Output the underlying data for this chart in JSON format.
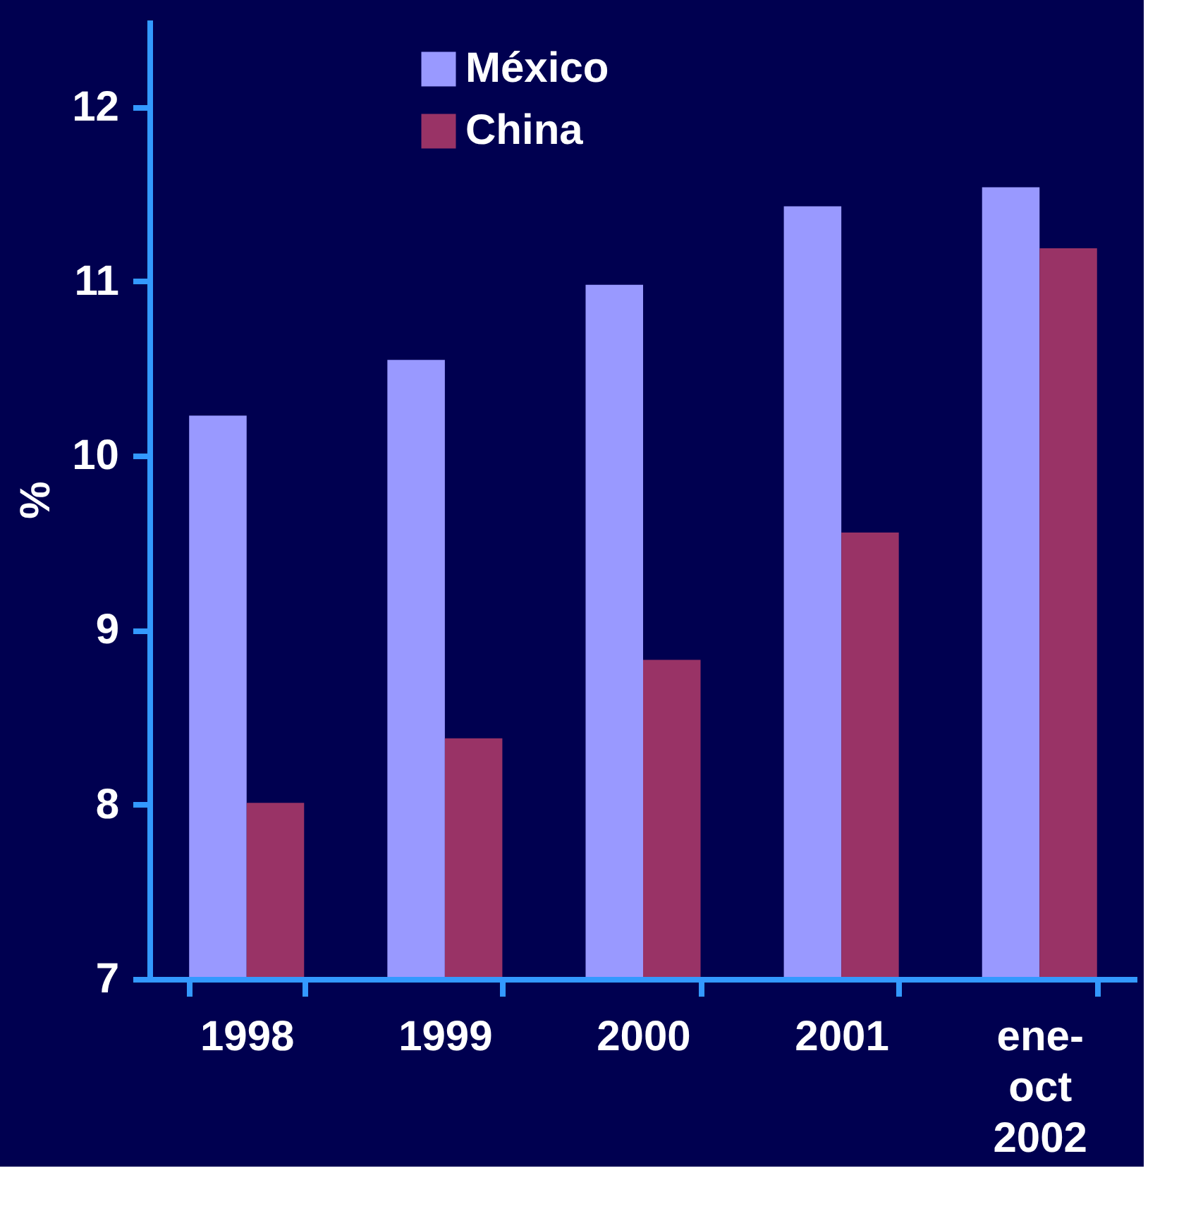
{
  "chart_data": {
    "type": "bar",
    "ylabel": "%",
    "categories": [
      "1998",
      "1999",
      "2000",
      "2001",
      "ene-\noct\n2002"
    ],
    "series": [
      {
        "name": "México",
        "color": "#9999ff",
        "values": [
          10.23,
          10.55,
          10.98,
          11.43,
          11.54
        ]
      },
      {
        "name": "China",
        "color": "#993366",
        "values": [
          8.01,
          8.38,
          8.83,
          9.56,
          11.19
        ]
      }
    ],
    "ylim": [
      7,
      12.5
    ],
    "yticks": [
      7,
      8,
      9,
      10,
      11,
      12
    ],
    "grid": false,
    "legend": "top left"
  }
}
